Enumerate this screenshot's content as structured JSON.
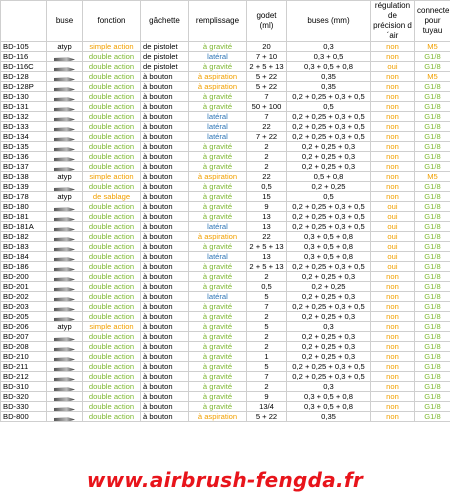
{
  "colors": {
    "orange": "#f2a000",
    "green": "#7fb832",
    "blue": "#2e75b6",
    "red": "#e8141b"
  },
  "headers": [
    "",
    "buse",
    "fonction",
    "gâchette",
    "remplissage",
    "godet (ml)",
    "buses (mm)",
    "régulation de précision d´air",
    "connecteur pour tuyau"
  ],
  "rows": [
    {
      "model": "BD-105",
      "buse": "atyp",
      "buse_icon": "",
      "fonction": "simple action",
      "fonction_color": "orange",
      "gachette": "de pistolet",
      "remp": "à gravité",
      "remp_color": "green",
      "godet": "20",
      "buses": "0,3",
      "reg": "non",
      "conn": "M5",
      "conn_color": "orange"
    },
    {
      "model": "BD-116",
      "buse": "",
      "buse_icon": "nozzle-icon",
      "fonction": "double action",
      "fonction_color": "green",
      "gachette": "de pistolet",
      "remp": "latéral",
      "remp_color": "blue",
      "godet": "7 + 10",
      "buses": "0,3 + 0,5",
      "reg": "non",
      "conn": "G1/8",
      "conn_color": "green"
    },
    {
      "model": "BD-116C",
      "buse": "",
      "buse_icon": "nozzle-icon",
      "fonction": "double action",
      "fonction_color": "green",
      "gachette": "de pistolet",
      "remp": "à gravité",
      "remp_color": "green",
      "godet": "2 + 5 + 13",
      "buses": "0,3 + 0,5 + 0,8",
      "reg": "oui",
      "conn": "G1/8",
      "conn_color": "green"
    },
    {
      "model": "BD-128",
      "buse": "",
      "buse_icon": "nozzle-icon",
      "fonction": "double action",
      "fonction_color": "green",
      "gachette": "à bouton",
      "remp": "à aspiration",
      "remp_color": "orange",
      "godet": "5 + 22",
      "buses": "0,35",
      "reg": "non",
      "conn": "M5",
      "conn_color": "orange"
    },
    {
      "model": "BD-128P",
      "buse": "",
      "buse_icon": "nozzle-icon",
      "fonction": "double action",
      "fonction_color": "green",
      "gachette": "à bouton",
      "remp": "à aspiration",
      "remp_color": "orange",
      "godet": "5 + 22",
      "buses": "0,35",
      "reg": "non",
      "conn": "G1/8",
      "conn_color": "green"
    },
    {
      "model": "BD-130",
      "buse": "",
      "buse_icon": "nozzle-icon",
      "fonction": "double action",
      "fonction_color": "green",
      "gachette": "à bouton",
      "remp": "à gravité",
      "remp_color": "green",
      "godet": "7",
      "buses": "0,2 + 0,25 + 0,3 + 0,5",
      "reg": "non",
      "conn": "G1/8",
      "conn_color": "green"
    },
    {
      "model": "BD-131",
      "buse": "",
      "buse_icon": "nozzle-icon",
      "fonction": "double action",
      "fonction_color": "green",
      "gachette": "à bouton",
      "remp": "à gravité",
      "remp_color": "green",
      "godet": "50 + 100",
      "buses": "0,5",
      "reg": "non",
      "conn": "G1/8",
      "conn_color": "green"
    },
    {
      "model": "BD-132",
      "buse": "",
      "buse_icon": "nozzle-icon",
      "fonction": "double action",
      "fonction_color": "green",
      "gachette": "à bouton",
      "remp": "latéral",
      "remp_color": "blue",
      "godet": "7",
      "buses": "0,2 + 0,25 + 0,3 + 0,5",
      "reg": "non",
      "conn": "G1/8",
      "conn_color": "green"
    },
    {
      "model": "BD-133",
      "buse": "",
      "buse_icon": "nozzle-icon",
      "fonction": "double action",
      "fonction_color": "green",
      "gachette": "à bouton",
      "remp": "latéral",
      "remp_color": "blue",
      "godet": "22",
      "buses": "0,2 + 0,25 + 0,3 + 0,5",
      "reg": "non",
      "conn": "G1/8",
      "conn_color": "green"
    },
    {
      "model": "BD-134",
      "buse": "",
      "buse_icon": "nozzle-icon",
      "fonction": "double action",
      "fonction_color": "green",
      "gachette": "à bouton",
      "remp": "latéral",
      "remp_color": "blue",
      "godet": "7 + 22",
      "buses": "0,2 + 0,25 + 0,3 + 0,5",
      "reg": "non",
      "conn": "G1/8",
      "conn_color": "green"
    },
    {
      "model": "BD-135",
      "buse": "",
      "buse_icon": "nozzle-icon",
      "fonction": "double action",
      "fonction_color": "green",
      "gachette": "à bouton",
      "remp": "à gravité",
      "remp_color": "green",
      "godet": "2",
      "buses": "0,2 + 0,25 + 0,3",
      "reg": "non",
      "conn": "G1/8",
      "conn_color": "green"
    },
    {
      "model": "BD-136",
      "buse": "",
      "buse_icon": "nozzle-icon",
      "fonction": "double action",
      "fonction_color": "green",
      "gachette": "à bouton",
      "remp": "à gravité",
      "remp_color": "green",
      "godet": "2",
      "buses": "0,2 + 0,25 + 0,3",
      "reg": "non",
      "conn": "G1/8",
      "conn_color": "green"
    },
    {
      "model": "BD-137",
      "buse": "",
      "buse_icon": "nozzle-icon",
      "fonction": "double action",
      "fonction_color": "green",
      "gachette": "à bouton",
      "remp": "à gravité",
      "remp_color": "green",
      "godet": "2",
      "buses": "0,2 + 0,25 + 0,3",
      "reg": "non",
      "conn": "G1/8",
      "conn_color": "green"
    },
    {
      "model": "BD-138",
      "buse": "atyp",
      "buse_icon": "",
      "fonction": "simple action",
      "fonction_color": "orange",
      "gachette": "à bouton",
      "remp": "à aspiration",
      "remp_color": "orange",
      "godet": "22",
      "buses": "0,5 + 0,8",
      "reg": "non",
      "conn": "M5",
      "conn_color": "orange"
    },
    {
      "model": "BD-139",
      "buse": "",
      "buse_icon": "nozzle-icon",
      "fonction": "double action",
      "fonction_color": "green",
      "gachette": "à bouton",
      "remp": "à gravité",
      "remp_color": "green",
      "godet": "0,5",
      "buses": "0,2 + 0,25",
      "reg": "non",
      "conn": "G1/8",
      "conn_color": "green"
    },
    {
      "model": "BD-178",
      "buse": "atyp",
      "buse_icon": "",
      "fonction": "de sablage",
      "fonction_color": "orange",
      "gachette": "à bouton",
      "remp": "à gravité",
      "remp_color": "green",
      "godet": "15",
      "buses": "0,5",
      "reg": "non",
      "conn": "G1/8",
      "conn_color": "green"
    },
    {
      "model": "BD-180",
      "buse": "",
      "buse_icon": "nozzle-icon",
      "fonction": "double action",
      "fonction_color": "green",
      "gachette": "à bouton",
      "remp": "à gravité",
      "remp_color": "green",
      "godet": "9",
      "buses": "0,2 + 0,25 + 0,3 + 0,5",
      "reg": "oui",
      "conn": "G1/8",
      "conn_color": "green"
    },
    {
      "model": "BD-181",
      "buse": "",
      "buse_icon": "nozzle-icon",
      "fonction": "double action",
      "fonction_color": "green",
      "gachette": "à bouton",
      "remp": "à gravité",
      "remp_color": "green",
      "godet": "13",
      "buses": "0,2 + 0,25 + 0,3 + 0,5",
      "reg": "oui",
      "conn": "G1/8",
      "conn_color": "green"
    },
    {
      "model": "BD-181A",
      "buse": "",
      "buse_icon": "nozzle-icon",
      "fonction": "double action",
      "fonction_color": "green",
      "gachette": "à bouton",
      "remp": "latéral",
      "remp_color": "blue",
      "godet": "13",
      "buses": "0,2 + 0,25 + 0,3 + 0,5",
      "reg": "oui",
      "conn": "G1/8",
      "conn_color": "green"
    },
    {
      "model": "BD-182",
      "buse": "",
      "buse_icon": "nozzle-icon",
      "fonction": "double action",
      "fonction_color": "green",
      "gachette": "à bouton",
      "remp": "à aspiration",
      "remp_color": "orange",
      "godet": "22",
      "buses": "0,3 + 0,5 + 0,8",
      "reg": "oui",
      "conn": "G1/8",
      "conn_color": "green"
    },
    {
      "model": "BD-183",
      "buse": "",
      "buse_icon": "nozzle-icon",
      "fonction": "double action",
      "fonction_color": "green",
      "gachette": "à bouton",
      "remp": "à gravité",
      "remp_color": "green",
      "godet": "2 + 5 + 13",
      "buses": "0,3 + 0,5 + 0,8",
      "reg": "oui",
      "conn": "G1/8",
      "conn_color": "green"
    },
    {
      "model": "BD-184",
      "buse": "",
      "buse_icon": "nozzle-icon",
      "fonction": "double action",
      "fonction_color": "green",
      "gachette": "à bouton",
      "remp": "latéral",
      "remp_color": "blue",
      "godet": "13",
      "buses": "0,3 + 0,5 + 0,8",
      "reg": "oui",
      "conn": "G1/8",
      "conn_color": "green"
    },
    {
      "model": "BD-186",
      "buse": "",
      "buse_icon": "nozzle-icon",
      "fonction": "double action",
      "fonction_color": "green",
      "gachette": "à bouton",
      "remp": "à gravité",
      "remp_color": "green",
      "godet": "2 + 5 + 13",
      "buses": "0,2 + 0,25 + 0,3 + 0,5",
      "reg": "oui",
      "conn": "G1/8",
      "conn_color": "green"
    },
    {
      "model": "BD-200",
      "buse": "",
      "buse_icon": "nozzle-icon",
      "fonction": "double action",
      "fonction_color": "green",
      "gachette": "à bouton",
      "remp": "à gravité",
      "remp_color": "green",
      "godet": "2",
      "buses": "0,2 + 0,25 + 0,3",
      "reg": "non",
      "conn": "G1/8",
      "conn_color": "green"
    },
    {
      "model": "BD-201",
      "buse": "",
      "buse_icon": "nozzle-icon",
      "fonction": "double action",
      "fonction_color": "green",
      "gachette": "à bouton",
      "remp": "à gravité",
      "remp_color": "green",
      "godet": "0,5",
      "buses": "0,2 + 0,25",
      "reg": "non",
      "conn": "G1/8",
      "conn_color": "green"
    },
    {
      "model": "BD-202",
      "buse": "",
      "buse_icon": "nozzle-icon",
      "fonction": "double action",
      "fonction_color": "green",
      "gachette": "à bouton",
      "remp": "latéral",
      "remp_color": "blue",
      "godet": "5",
      "buses": "0,2 + 0,25 + 0,3",
      "reg": "non",
      "conn": "G1/8",
      "conn_color": "green"
    },
    {
      "model": "BD-203",
      "buse": "",
      "buse_icon": "nozzle-icon",
      "fonction": "double action",
      "fonction_color": "green",
      "gachette": "à bouton",
      "remp": "à gravité",
      "remp_color": "green",
      "godet": "7",
      "buses": "0,2 + 0,25 + 0,3 + 0,5",
      "reg": "non",
      "conn": "G1/8",
      "conn_color": "green"
    },
    {
      "model": "BD-205",
      "buse": "",
      "buse_icon": "nozzle-icon",
      "fonction": "double action",
      "fonction_color": "green",
      "gachette": "à bouton",
      "remp": "à gravité",
      "remp_color": "green",
      "godet": "2",
      "buses": "0,2 + 0,25 + 0,3",
      "reg": "non",
      "conn": "G1/8",
      "conn_color": "green"
    },
    {
      "model": "BD-206",
      "buse": "atyp",
      "buse_icon": "",
      "fonction": "simple action",
      "fonction_color": "orange",
      "gachette": "à bouton",
      "remp": "à gravité",
      "remp_color": "green",
      "godet": "5",
      "buses": "0,3",
      "reg": "non",
      "conn": "G1/8",
      "conn_color": "green"
    },
    {
      "model": "BD-207",
      "buse": "",
      "buse_icon": "nozzle-icon",
      "fonction": "double action",
      "fonction_color": "green",
      "gachette": "à bouton",
      "remp": "à gravité",
      "remp_color": "green",
      "godet": "2",
      "buses": "0,2 + 0,25 + 0,3",
      "reg": "non",
      "conn": "G1/8",
      "conn_color": "green"
    },
    {
      "model": "BD-208",
      "buse": "",
      "buse_icon": "nozzle-icon",
      "fonction": "double action",
      "fonction_color": "green",
      "gachette": "à bouton",
      "remp": "à gravité",
      "remp_color": "green",
      "godet": "2",
      "buses": "0,2 + 0,25 + 0,3",
      "reg": "non",
      "conn": "G1/8",
      "conn_color": "green"
    },
    {
      "model": "BD-210",
      "buse": "",
      "buse_icon": "nozzle-icon",
      "fonction": "double action",
      "fonction_color": "green",
      "gachette": "à bouton",
      "remp": "à gravité",
      "remp_color": "green",
      "godet": "1",
      "buses": "0,2 + 0,25 + 0,3",
      "reg": "non",
      "conn": "G1/8",
      "conn_color": "green"
    },
    {
      "model": "BD-211",
      "buse": "",
      "buse_icon": "nozzle-icon",
      "fonction": "double action",
      "fonction_color": "green",
      "gachette": "à bouton",
      "remp": "à gravité",
      "remp_color": "green",
      "godet": "5",
      "buses": "0,2 + 0,25 + 0,3 + 0,5",
      "reg": "non",
      "conn": "G1/8",
      "conn_color": "green"
    },
    {
      "model": "BD-212",
      "buse": "",
      "buse_icon": "nozzle-icon",
      "fonction": "double action",
      "fonction_color": "green",
      "gachette": "à bouton",
      "remp": "à gravité",
      "remp_color": "green",
      "godet": "7",
      "buses": "0,2 + 0,25 + 0,3 + 0,5",
      "reg": "non",
      "conn": "G1/8",
      "conn_color": "green"
    },
    {
      "model": "BD-310",
      "buse": "",
      "buse_icon": "nozzle-icon",
      "fonction": "double action",
      "fonction_color": "green",
      "gachette": "à bouton",
      "remp": "à gravité",
      "remp_color": "green",
      "godet": "2",
      "buses": "0,3",
      "reg": "non",
      "conn": "G1/8",
      "conn_color": "green"
    },
    {
      "model": "BD-320",
      "buse": "",
      "buse_icon": "nozzle-icon",
      "fonction": "double action",
      "fonction_color": "green",
      "gachette": "à bouton",
      "remp": "à gravité",
      "remp_color": "green",
      "godet": "9",
      "buses": "0,3 + 0,5 + 0,8",
      "reg": "non",
      "conn": "G1/8",
      "conn_color": "green"
    },
    {
      "model": "BD-330",
      "buse": "",
      "buse_icon": "nozzle-icon",
      "fonction": "double action",
      "fonction_color": "green",
      "gachette": "à bouton",
      "remp": "à gravité",
      "remp_color": "green",
      "godet": "13/4",
      "buses": "0,3 + 0,5 + 0,8",
      "reg": "non",
      "conn": "G1/8",
      "conn_color": "green"
    },
    {
      "model": "BD-800",
      "buse": "",
      "buse_icon": "nozzle-icon",
      "fonction": "double action",
      "fonction_color": "green",
      "gachette": "à bouton",
      "remp": "à aspiration",
      "remp_color": "orange",
      "godet": "5 + 22",
      "buses": "0,35",
      "reg": "non",
      "conn": "G1/8",
      "conn_color": "green"
    }
  ],
  "footer": "www.airbrush-fengda.fr"
}
